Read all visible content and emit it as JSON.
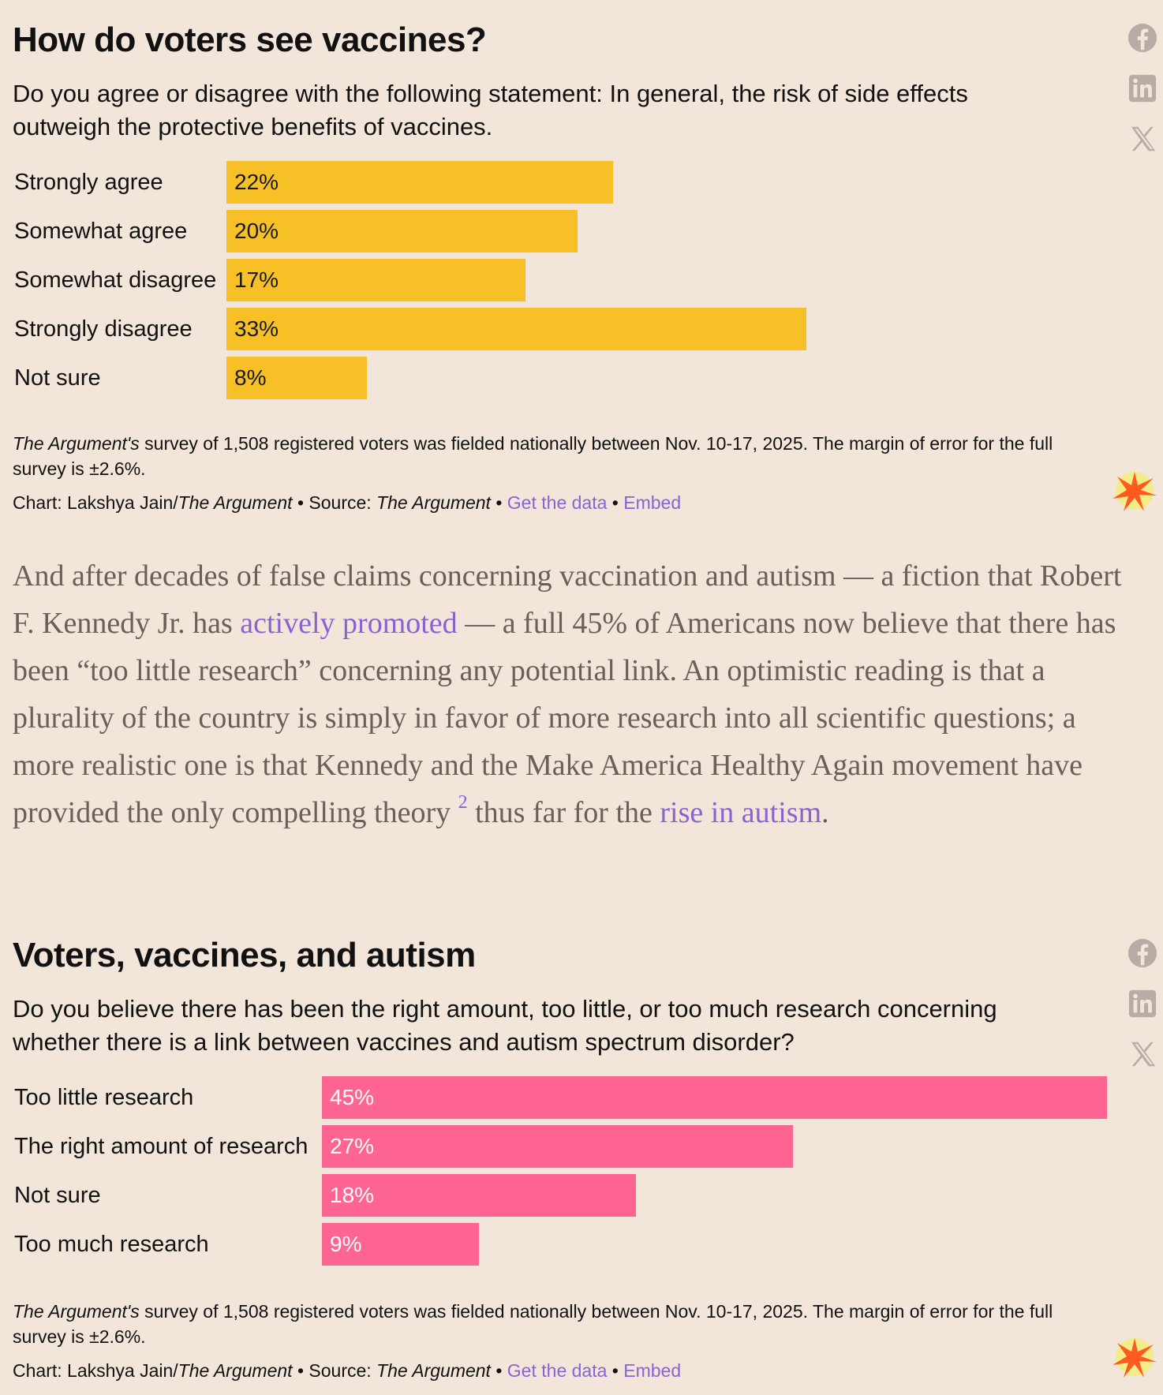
{
  "chart1": {
    "title": "How do voters see vaccines?",
    "subtitle": "Do you agree or disagree with the following statement: In general, the risk of side effects outweigh the protective benefits of vaccines.",
    "footnote_italic": "The Argument's",
    "footnote_rest": " survey of 1,508 registered voters was fielded nationally between Nov. 10-17, 2025. The margin of error for the full survey is ±2.6%.",
    "credit_prefix": "Chart: Lakshya Jain/",
    "credit_pub": "The Argument",
    "credit_source_prefix": " • Source: ",
    "credit_source": "The Argument",
    "sep1": " • ",
    "get_data": "Get the data",
    "sep2": " • ",
    "embed": "Embed",
    "bar_color": "#f6c026"
  },
  "chart2": {
    "title": "Voters, vaccines, and autism",
    "subtitle": "Do you believe there has been the right amount, too little, or too much research concerning whether there is a link between vaccines and autism spectrum disorder?",
    "footnote_italic": "The Argument's",
    "footnote_rest": " survey of 1,508 registered voters was fielded nationally between Nov. 10-17, 2025. The margin of error for the full survey is ±2.6%.",
    "credit_prefix": "Chart: Lakshya Jain/",
    "credit_pub": "The Argument",
    "credit_source_prefix": " • Source: ",
    "credit_source": "The Argument",
    "sep1": " • ",
    "get_data": "Get the data",
    "sep2": " • ",
    "embed": "Embed",
    "bar_color": "#ff6593"
  },
  "article": {
    "p1": "And after decades of false claims concerning vaccination and autism — a fiction that Robert F. Kennedy Jr. has ",
    "link1": "actively promoted",
    "p2": " — a full 45% of Americans now believe that there has been “too little research” concerning any potential link. An optimistic reading is that a plurality of the country is simply in favor of more research into all scientific questions; a more realistic one is that Kennedy and the Make America Healthy Again movement have provided the only compelling theory ",
    "footnote_ref": "2",
    "p3": " thus far for the ",
    "link2": "rise in autism",
    "p4": "."
  },
  "social_icons": [
    "facebook-icon",
    "linkedin-icon",
    "x-icon"
  ],
  "chart_data": [
    {
      "type": "bar",
      "orientation": "horizontal",
      "title": "How do voters see vaccines?",
      "categories": [
        "Strongly agree",
        "Somewhat agree",
        "Somewhat disagree",
        "Strongly disagree",
        "Not sure"
      ],
      "values": [
        22,
        20,
        17,
        33,
        8
      ],
      "value_labels": [
        "22%",
        "20%",
        "17%",
        "33%",
        "8%"
      ],
      "unit": "%",
      "xlim": [
        0,
        50
      ]
    },
    {
      "type": "bar",
      "orientation": "horizontal",
      "title": "Voters, vaccines, and autism",
      "categories": [
        "Too little research",
        "The right amount of research",
        "Not sure",
        "Too much research"
      ],
      "values": [
        45,
        27,
        18,
        9
      ],
      "value_labels": [
        "45%",
        "27%",
        "18%",
        "9%"
      ],
      "unit": "%",
      "xlim": [
        0,
        45
      ]
    }
  ]
}
